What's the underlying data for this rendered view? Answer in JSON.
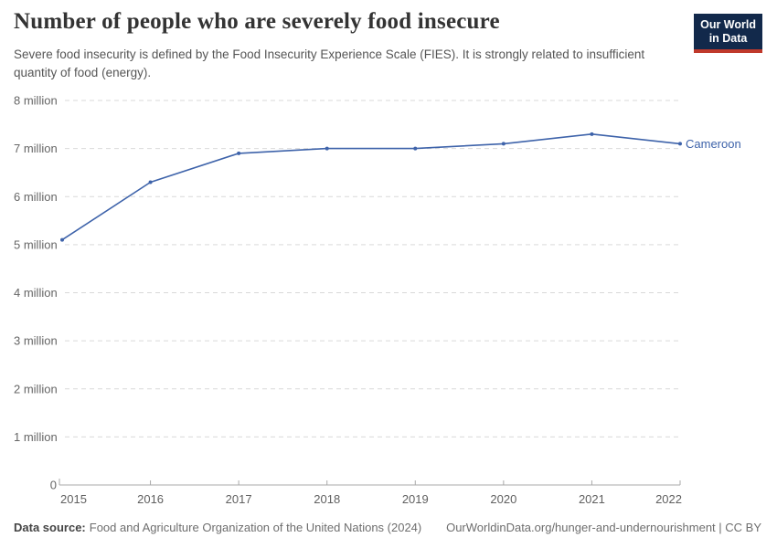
{
  "header": {
    "title": "Number of people who are severely food insecure",
    "subtitle": "Severe food insecurity is defined by the Food Insecurity Experience Scale (FIES). It is strongly related to insufficient quantity of food (energy).",
    "logo": {
      "line1": "Our World",
      "line2": "in Data"
    }
  },
  "chart_data": {
    "type": "line",
    "title": "Number of people who are severely food insecure",
    "unit": "million people",
    "x": [
      2015,
      2016,
      2017,
      2018,
      2019,
      2020,
      2021,
      2022
    ],
    "series": [
      {
        "name": "Cameroon",
        "values": [
          5.1,
          6.3,
          6.9,
          7.0,
          7.0,
          7.1,
          7.3,
          7.1
        ],
        "color": "#3E63AA"
      }
    ],
    "xlim": [
      2015,
      2022
    ],
    "ylim": [
      0,
      8
    ],
    "y_ticks": [
      {
        "value": 0,
        "label": "0"
      },
      {
        "value": 1,
        "label": "1 million"
      },
      {
        "value": 2,
        "label": "2 million"
      },
      {
        "value": 3,
        "label": "3 million"
      },
      {
        "value": 4,
        "label": "4 million"
      },
      {
        "value": 5,
        "label": "5 million"
      },
      {
        "value": 6,
        "label": "6 million"
      },
      {
        "value": 7,
        "label": "7 million"
      },
      {
        "value": 8,
        "label": "8 million"
      }
    ],
    "grid": "dashed horizontal gridlines",
    "legend": "series label at end of line"
  },
  "footer": {
    "source_label": "Data source:",
    "source_text": "Food and Agriculture Organization of the United Nations (2024)",
    "right_text": "OurWorldinData.org/hunger-and-undernourishment | CC BY"
  },
  "colors": {
    "line": "#3E63AA",
    "grid": "#D9D9D9",
    "axis": "#A9A9A9",
    "tick_text": "#666666",
    "logo_navy": "#12294B",
    "logo_red": "#C0392B"
  }
}
